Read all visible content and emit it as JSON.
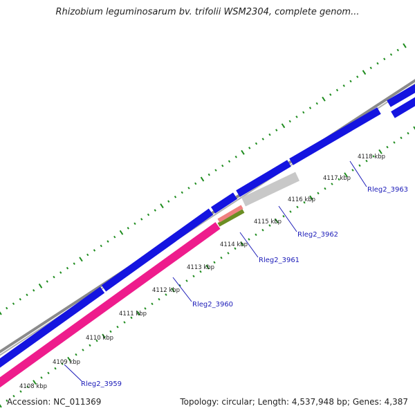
{
  "title": "Rhizobium leguminosarum bv. trifolii WSM2304, complete genom...",
  "footer": {
    "accession": "Accession: NC_011369",
    "summary": "Topology: circular; Length: 4,537,948 bp; Genes: 4,387"
  },
  "colors": {
    "backbone": "#8a8a8a",
    "forward_cds": "#1414e0",
    "reverse_cds": "#ee1c8c",
    "olive": "#6b8e23",
    "salmon": "#f08080",
    "grey_feature": "#c8c8c8",
    "ticks": "#1e8c1e",
    "gene_label": "#1a1ab8"
  },
  "scale": {
    "unit": "kbp",
    "ticks": [
      {
        "label": "4108 kbp"
      },
      {
        "label": "4109 kbp"
      },
      {
        "label": "4110 kbp"
      },
      {
        "label": "4111 kbp"
      },
      {
        "label": "4112 kbp"
      },
      {
        "label": "4113 kbp"
      },
      {
        "label": "4114 kbp"
      },
      {
        "label": "4115 kbp"
      },
      {
        "label": "4116 kbp"
      },
      {
        "label": "4117 kbp"
      },
      {
        "label": "4118 kbp"
      }
    ]
  },
  "genes": [
    {
      "label": "Rleg2_3959"
    },
    {
      "label": "Rleg2_3960"
    },
    {
      "label": "Rleg2_3961"
    },
    {
      "label": "Rleg2_3962"
    },
    {
      "label": "Rleg2_3963"
    }
  ]
}
